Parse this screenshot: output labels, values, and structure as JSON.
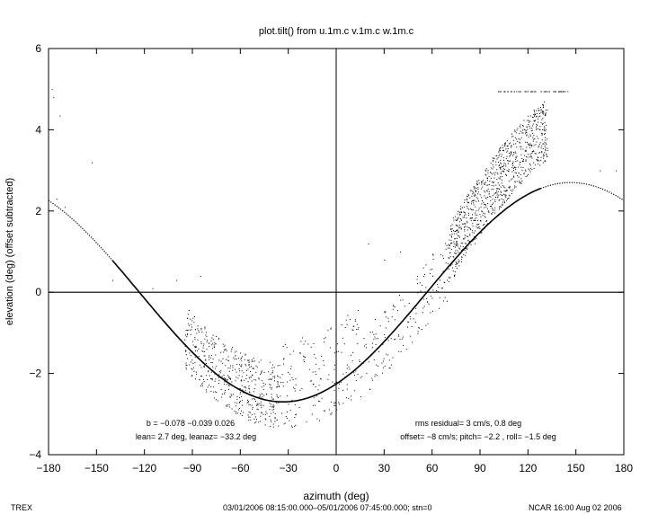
{
  "chart_data": {
    "type": "scatter",
    "title": "plot.tilt() from u.1m.c v.1m.c w.1m.c",
    "xlabel": "azimuth (deg)",
    "ylabel": "elevation (deg)  (offset subtracted)",
    "xlim": [
      -180,
      180
    ],
    "ylim": [
      -4,
      6
    ],
    "xticks": [
      -180,
      -150,
      -120,
      -90,
      -60,
      -30,
      0,
      30,
      60,
      90,
      120,
      150,
      180
    ],
    "yticks": [
      -4,
      -2,
      0,
      2,
      4,
      6
    ],
    "grid": false,
    "reference_lines": {
      "x": 0,
      "y": 0
    },
    "fit_curve": {
      "description_values": {
        "amplitude_deg": 2.7,
        "peak_azimuth_deg": 146.8
      }
    },
    "annotations": {
      "left_line1": "b = −0.078 −0.039  0.026",
      "left_line2": "lean= 2.7 deg, leanaz= −33.2 deg",
      "right_line1": "rms residual= 3 cm/s, 0.8 deg",
      "right_line2": "offset= −8 cm/s; pitch= −2.2 , roll= −1.5 deg"
    }
  },
  "footer": {
    "left": "TREX",
    "center": "03/01/2006 08:15:00.000–05/01/2006 07:45:00.000; stn=0",
    "right": "NCAR 16:00 Aug 02 2006"
  }
}
